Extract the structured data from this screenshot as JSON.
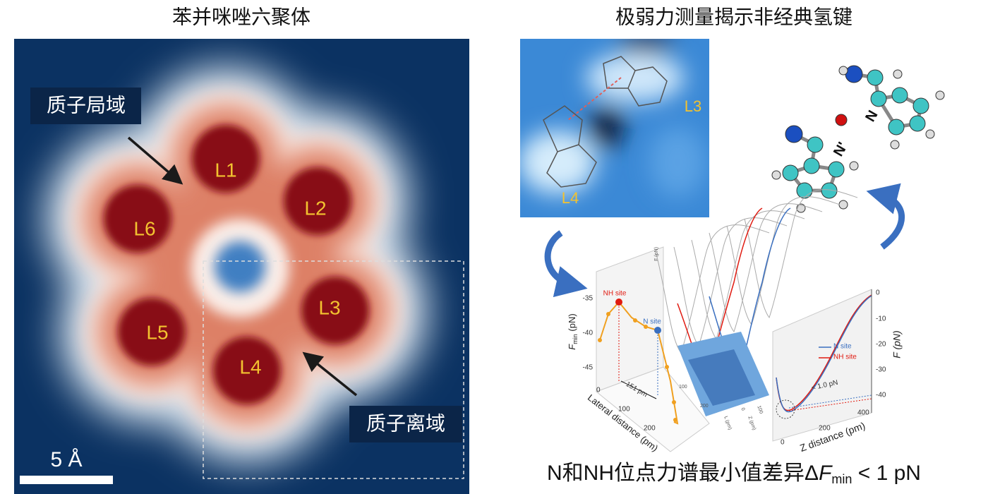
{
  "left_panel": {
    "title": "苯并咪唑六聚体",
    "lobe_labels": [
      "L1",
      "L2",
      "L3",
      "L4",
      "L5",
      "L6"
    ],
    "annotations": [
      "质子局域",
      "质子离域"
    ],
    "scale_bar": "5 Å"
  },
  "right_panel": {
    "title": "极弱力测量揭示非经典氢键",
    "stm_labels": [
      "L3",
      "L4"
    ],
    "molecule_labels": [
      "N'",
      "N"
    ],
    "lateral_plot": {
      "y_label": [
        "F",
        "min",
        " (pN)"
      ],
      "y_ticks": [
        "-35",
        "-40",
        "-45"
      ],
      "x_label": "Lateral distance (pm)",
      "x_ticks": [
        "0",
        "100",
        "200"
      ],
      "point_labels": [
        "NH site",
        "N site"
      ],
      "spacing": "151 pm"
    },
    "waterfall": {
      "axis_label": "F (pN)",
      "l_label": "L (pm)",
      "l_ticks": [
        "100",
        "200"
      ],
      "z_label": "Z (pm)",
      "z_ticks": [
        "0",
        "100"
      ]
    },
    "force_plot": {
      "y_label": "F (pN)",
      "y_ticks": [
        "0",
        "-10",
        "-20",
        "-30",
        "-40"
      ],
      "x_label": "Z distance (pm)",
      "x_ticks": [
        "0",
        "200",
        "400"
      ],
      "legend": [
        "N site",
        "NH site"
      ],
      "annotation": "< 1.0 pN"
    },
    "caption": [
      "N和NH位点力谱最小值差异Δ",
      "F",
      "min",
      " < 1 pN"
    ]
  }
}
